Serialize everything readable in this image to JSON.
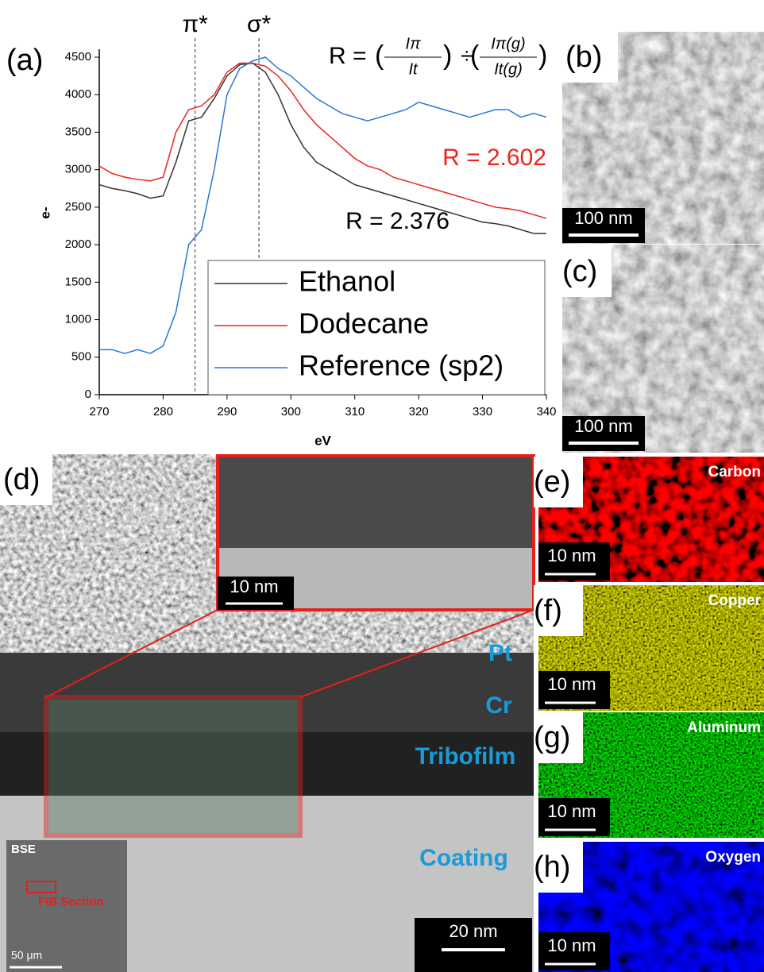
{
  "chart_data": {
    "type": "line",
    "label": "(a)",
    "xlabel": "eV",
    "ylabel": "e-",
    "x": [
      270,
      272,
      274,
      276,
      278,
      280,
      282,
      284,
      286,
      288,
      290,
      292,
      294,
      296,
      298,
      300,
      302,
      304,
      306,
      308,
      310,
      312,
      314,
      316,
      318,
      320,
      322,
      324,
      326,
      328,
      330,
      332,
      334,
      336,
      338,
      340
    ],
    "series": [
      {
        "name": "Ethanol",
        "color": "#333333",
        "values": [
          2800,
          2750,
          2720,
          2680,
          2620,
          2650,
          3100,
          3650,
          3700,
          3950,
          4250,
          4400,
          4420,
          4300,
          4000,
          3600,
          3300,
          3100,
          3000,
          2900,
          2800,
          2750,
          2700,
          2650,
          2600,
          2550,
          2500,
          2450,
          2400,
          2350,
          2300,
          2280,
          2250,
          2200,
          2150,
          2150
        ]
      },
      {
        "name": "Dodecane",
        "color": "#e8261f",
        "values": [
          3050,
          2950,
          2900,
          2870,
          2850,
          2900,
          3500,
          3800,
          3850,
          4000,
          4300,
          4420,
          4420,
          4380,
          4250,
          4050,
          3800,
          3600,
          3450,
          3300,
          3150,
          3050,
          3000,
          2900,
          2850,
          2800,
          2750,
          2700,
          2650,
          2600,
          2550,
          2500,
          2480,
          2450,
          2400,
          2350
        ]
      },
      {
        "name": "Reference (sp2)",
        "color": "#2a76d8",
        "values": [
          600,
          600,
          550,
          600,
          550,
          650,
          1100,
          2000,
          2200,
          3000,
          4000,
          4350,
          4450,
          4500,
          4350,
          4250,
          4100,
          3950,
          3850,
          3750,
          3700,
          3650,
          3700,
          3750,
          3800,
          3900,
          3850,
          3800,
          3750,
          3700,
          3750,
          3800,
          3800,
          3700,
          3750,
          3700
        ]
      }
    ],
    "xlim": [
      270,
      340
    ],
    "xticks": [
      270,
      280,
      290,
      300,
      310,
      320,
      330,
      340
    ],
    "ylim": [
      0,
      4500
    ],
    "yticks": [
      0,
      500,
      1000,
      1500,
      2000,
      2500,
      3000,
      3500,
      4000,
      4500
    ],
    "markers": [
      {
        "x": 285,
        "label": "π*"
      },
      {
        "x": 295,
        "label": "σ*"
      }
    ],
    "annotations": [
      {
        "text": "R = 2.602",
        "color": "#e8261f"
      },
      {
        "text": "R = 2.376",
        "color": "#000000"
      }
    ],
    "formula": {
      "lhs": "R = ",
      "num1": "Iπ",
      "den1": "It",
      "op": "÷",
      "num2": "Iπ(g)",
      "den2": "It(g)"
    }
  },
  "panels": {
    "b": {
      "label": "(b)",
      "scale_bar": "100 nm"
    },
    "c": {
      "label": "(c)",
      "scale_bar": "100 nm"
    },
    "d": {
      "label": "(d)",
      "inset_scale": "10 nm",
      "scale_bar": "20 nm",
      "layers": [
        "Pt",
        "Cr",
        "Tribofilm",
        "Coating"
      ],
      "bse": {
        "label": "BSE",
        "region": "FIB Section",
        "scale_bar": "50 μm"
      }
    },
    "e": {
      "label": "(e)",
      "element": "Carbon",
      "scale_bar": "10 nm"
    },
    "f": {
      "label": "(f)",
      "element": "Copper",
      "scale_bar": "10 nm"
    },
    "g": {
      "label": "(g)",
      "element": "Aluminum",
      "scale_bar": "10 nm"
    },
    "h": {
      "label": "(h)",
      "element": "Oxygen",
      "scale_bar": "10 nm"
    }
  }
}
